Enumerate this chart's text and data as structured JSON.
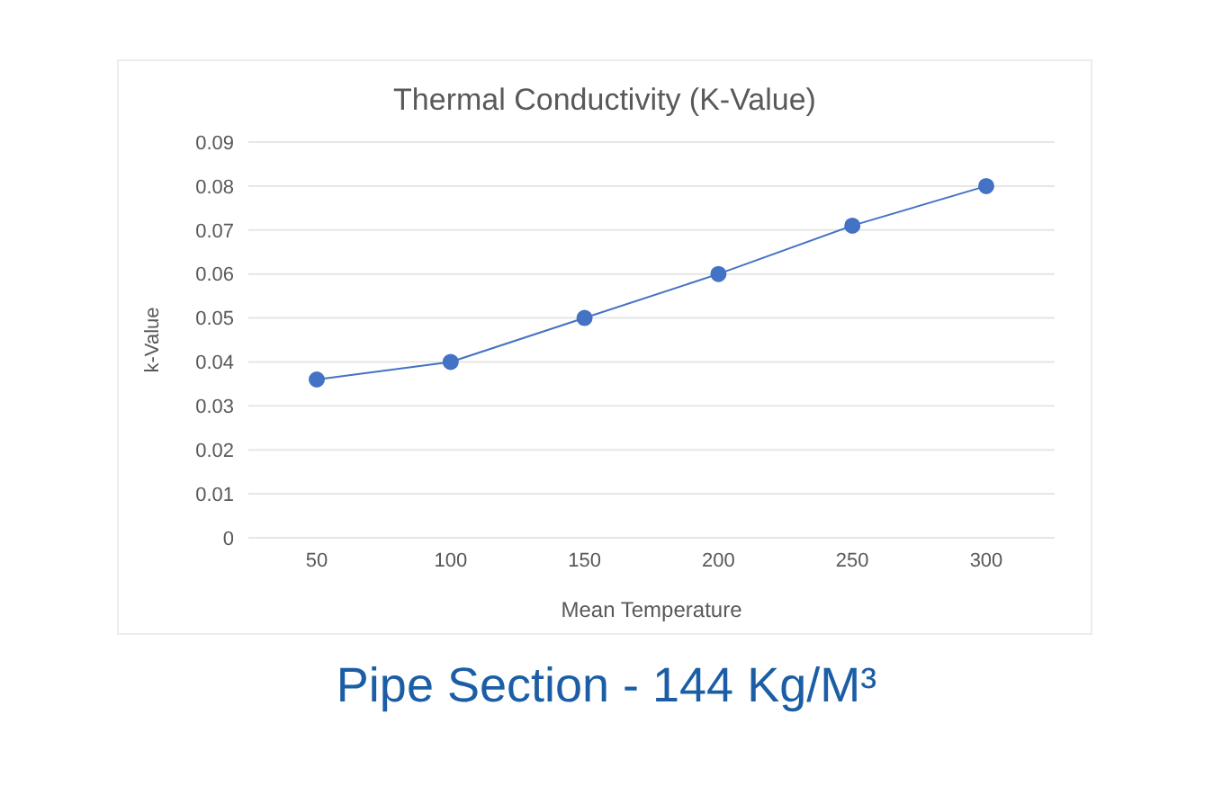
{
  "chart_data": {
    "type": "line",
    "title": "Thermal Conductivity (K-Value)",
    "subtitle": "Pipe Section - 144 Kg/M³",
    "xlabel": "Mean Temperature",
    "ylabel": "k-Value",
    "categories": [
      "50",
      "100",
      "150",
      "200",
      "250",
      "300"
    ],
    "series": [
      {
        "color": "#4472c4",
        "values": [
          0.036,
          0.04,
          0.05,
          0.06,
          0.071,
          0.08
        ]
      }
    ],
    "ylim": [
      0,
      0.09
    ],
    "yticks": [
      0,
      0.01,
      0.02,
      0.03,
      0.04,
      0.05,
      0.06,
      0.07,
      0.08,
      0.09
    ],
    "grid": "y",
    "marker": "circle",
    "line_style": "solid"
  }
}
